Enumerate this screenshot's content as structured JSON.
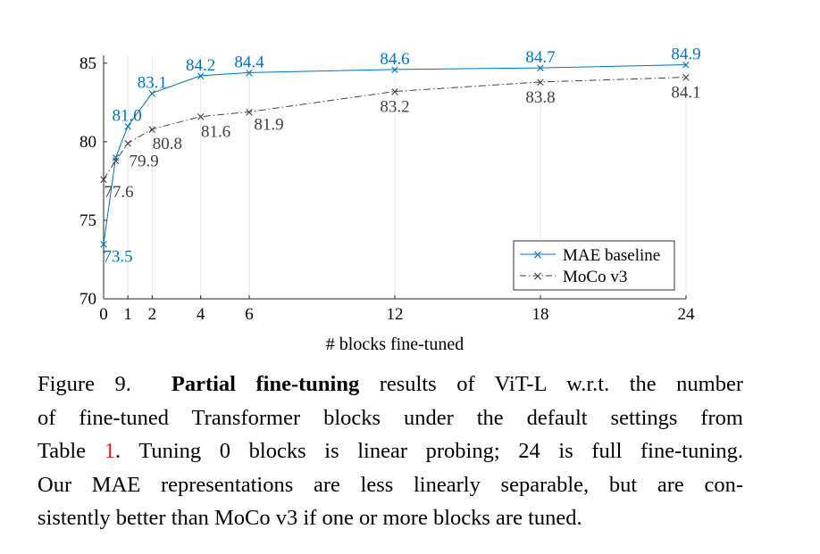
{
  "chart_data": {
    "type": "line",
    "xlabel": "# blocks fine-tuned",
    "ylabel": "",
    "x_ticks": [
      0,
      1,
      2,
      4,
      6,
      12,
      18,
      24
    ],
    "y_ticks": [
      70,
      75,
      80,
      85
    ],
    "xlim": [
      0,
      24
    ],
    "ylim": [
      70,
      85.5
    ],
    "grid": "vertical",
    "legend_position": "bottom-right",
    "series": [
      {
        "name": "MAE baseline",
        "color": "#0072bd",
        "x": [
          0,
          0.5,
          1,
          2,
          4,
          6,
          12,
          18,
          24
        ],
        "y": [
          73.5,
          79.0,
          81.0,
          83.1,
          84.2,
          84.4,
          84.6,
          84.7,
          84.9
        ],
        "labeled_points": [
          {
            "x": 0,
            "label": "73.5"
          },
          {
            "x": 1,
            "label": "81.0"
          },
          {
            "x": 2,
            "label": "83.1"
          },
          {
            "x": 4,
            "label": "84.2"
          },
          {
            "x": 6,
            "label": "84.4"
          },
          {
            "x": 12,
            "label": "84.6"
          },
          {
            "x": 18,
            "label": "84.7"
          },
          {
            "x": 24,
            "label": "84.9"
          }
        ]
      },
      {
        "name": "MoCo v3",
        "color": "#404040",
        "x": [
          0,
          0.5,
          1,
          2,
          4,
          6,
          12,
          18,
          24
        ],
        "y": [
          77.6,
          78.8,
          79.9,
          80.8,
          81.6,
          81.9,
          83.2,
          83.8,
          84.1
        ],
        "labeled_points": [
          {
            "x": 0,
            "label": "77.6"
          },
          {
            "x": 1,
            "label": "79.9"
          },
          {
            "x": 2,
            "label": "80.8"
          },
          {
            "x": 4,
            "label": "81.6"
          },
          {
            "x": 6,
            "label": "81.9"
          },
          {
            "x": 12,
            "label": "83.2"
          },
          {
            "x": 18,
            "label": "83.8"
          },
          {
            "x": 24,
            "label": "84.1"
          }
        ]
      }
    ]
  },
  "caption": {
    "prefix": "Figure 9.",
    "bold": "Partial fine-tuning",
    "l1_rest": "results of ViT-L w.r.t. the number",
    "l2": "of fine-tuned Transformer blocks under the default settings from",
    "l3_a": "Table",
    "l3_ref": "1",
    "l3_b": ". Tuning 0 blocks is linear probing; 24 is full fine-tuning.",
    "l4": "Our MAE representations are less linearly separable, but are con-",
    "l5": "sistently better than MoCo v3 if one or more blocks are tuned."
  }
}
